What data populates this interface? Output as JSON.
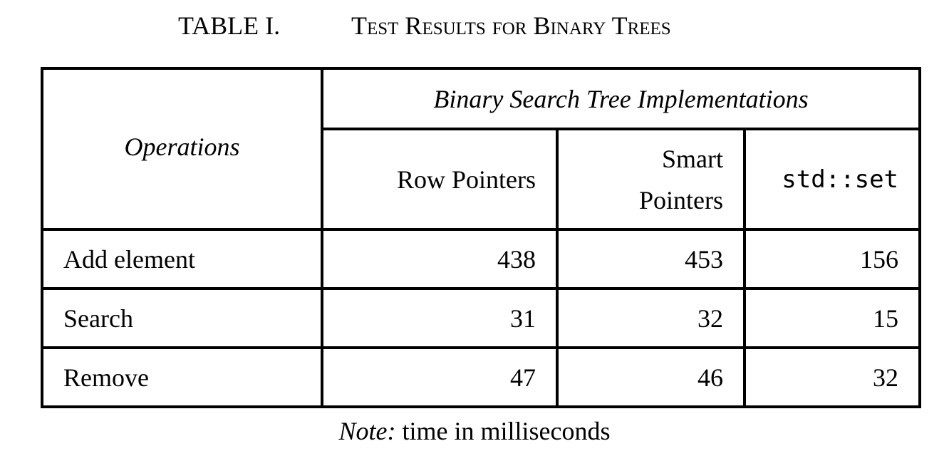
{
  "caption": {
    "label": "TABLE I.",
    "title": "Test Results for Binary Trees"
  },
  "table": {
    "operations_header": "Operations",
    "implementations_header": "Binary Search Tree Implementations",
    "columns": [
      {
        "label": "Row Pointers",
        "monospace": false
      },
      {
        "label": "Smart Pointers",
        "monospace": false
      },
      {
        "label": "std::set",
        "monospace": true
      }
    ],
    "rows": [
      {
        "operation": "Add element",
        "values": [
          "438",
          "453",
          "156"
        ]
      },
      {
        "operation": "Search",
        "values": [
          "31",
          "32",
          "15"
        ]
      },
      {
        "operation": "Remove",
        "values": [
          "47",
          "46",
          "32"
        ]
      }
    ]
  },
  "note": {
    "label": "Note:",
    "text": "time in milliseconds"
  }
}
